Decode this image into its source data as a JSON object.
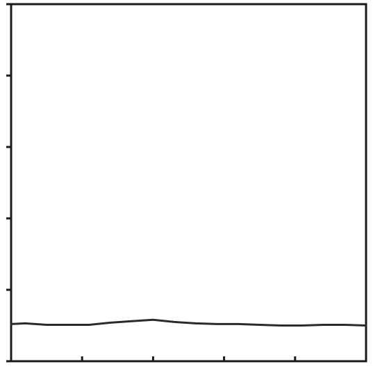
{
  "chart_data": {
    "type": "line",
    "title": "",
    "xlabel": "",
    "ylabel": "",
    "grid": false,
    "xlim": [
      0,
      5
    ],
    "ylim": [
      0,
      5
    ],
    "x_ticks": [
      0,
      1,
      2,
      3,
      4,
      5
    ],
    "y_ticks": [
      0,
      1,
      2,
      3,
      4,
      5
    ],
    "series": [
      {
        "color": "#2a2a2a",
        "x": [
          0,
          0.2,
          0.5,
          0.8,
          1.1,
          1.4,
          1.7,
          2.0,
          2.3,
          2.6,
          2.9,
          3.2,
          3.5,
          3.8,
          4.1,
          4.4,
          4.7,
          5.0
        ],
        "y": [
          0.52,
          0.53,
          0.51,
          0.51,
          0.51,
          0.54,
          0.56,
          0.58,
          0.55,
          0.53,
          0.52,
          0.52,
          0.51,
          0.5,
          0.5,
          0.51,
          0.51,
          0.5
        ]
      }
    ]
  }
}
